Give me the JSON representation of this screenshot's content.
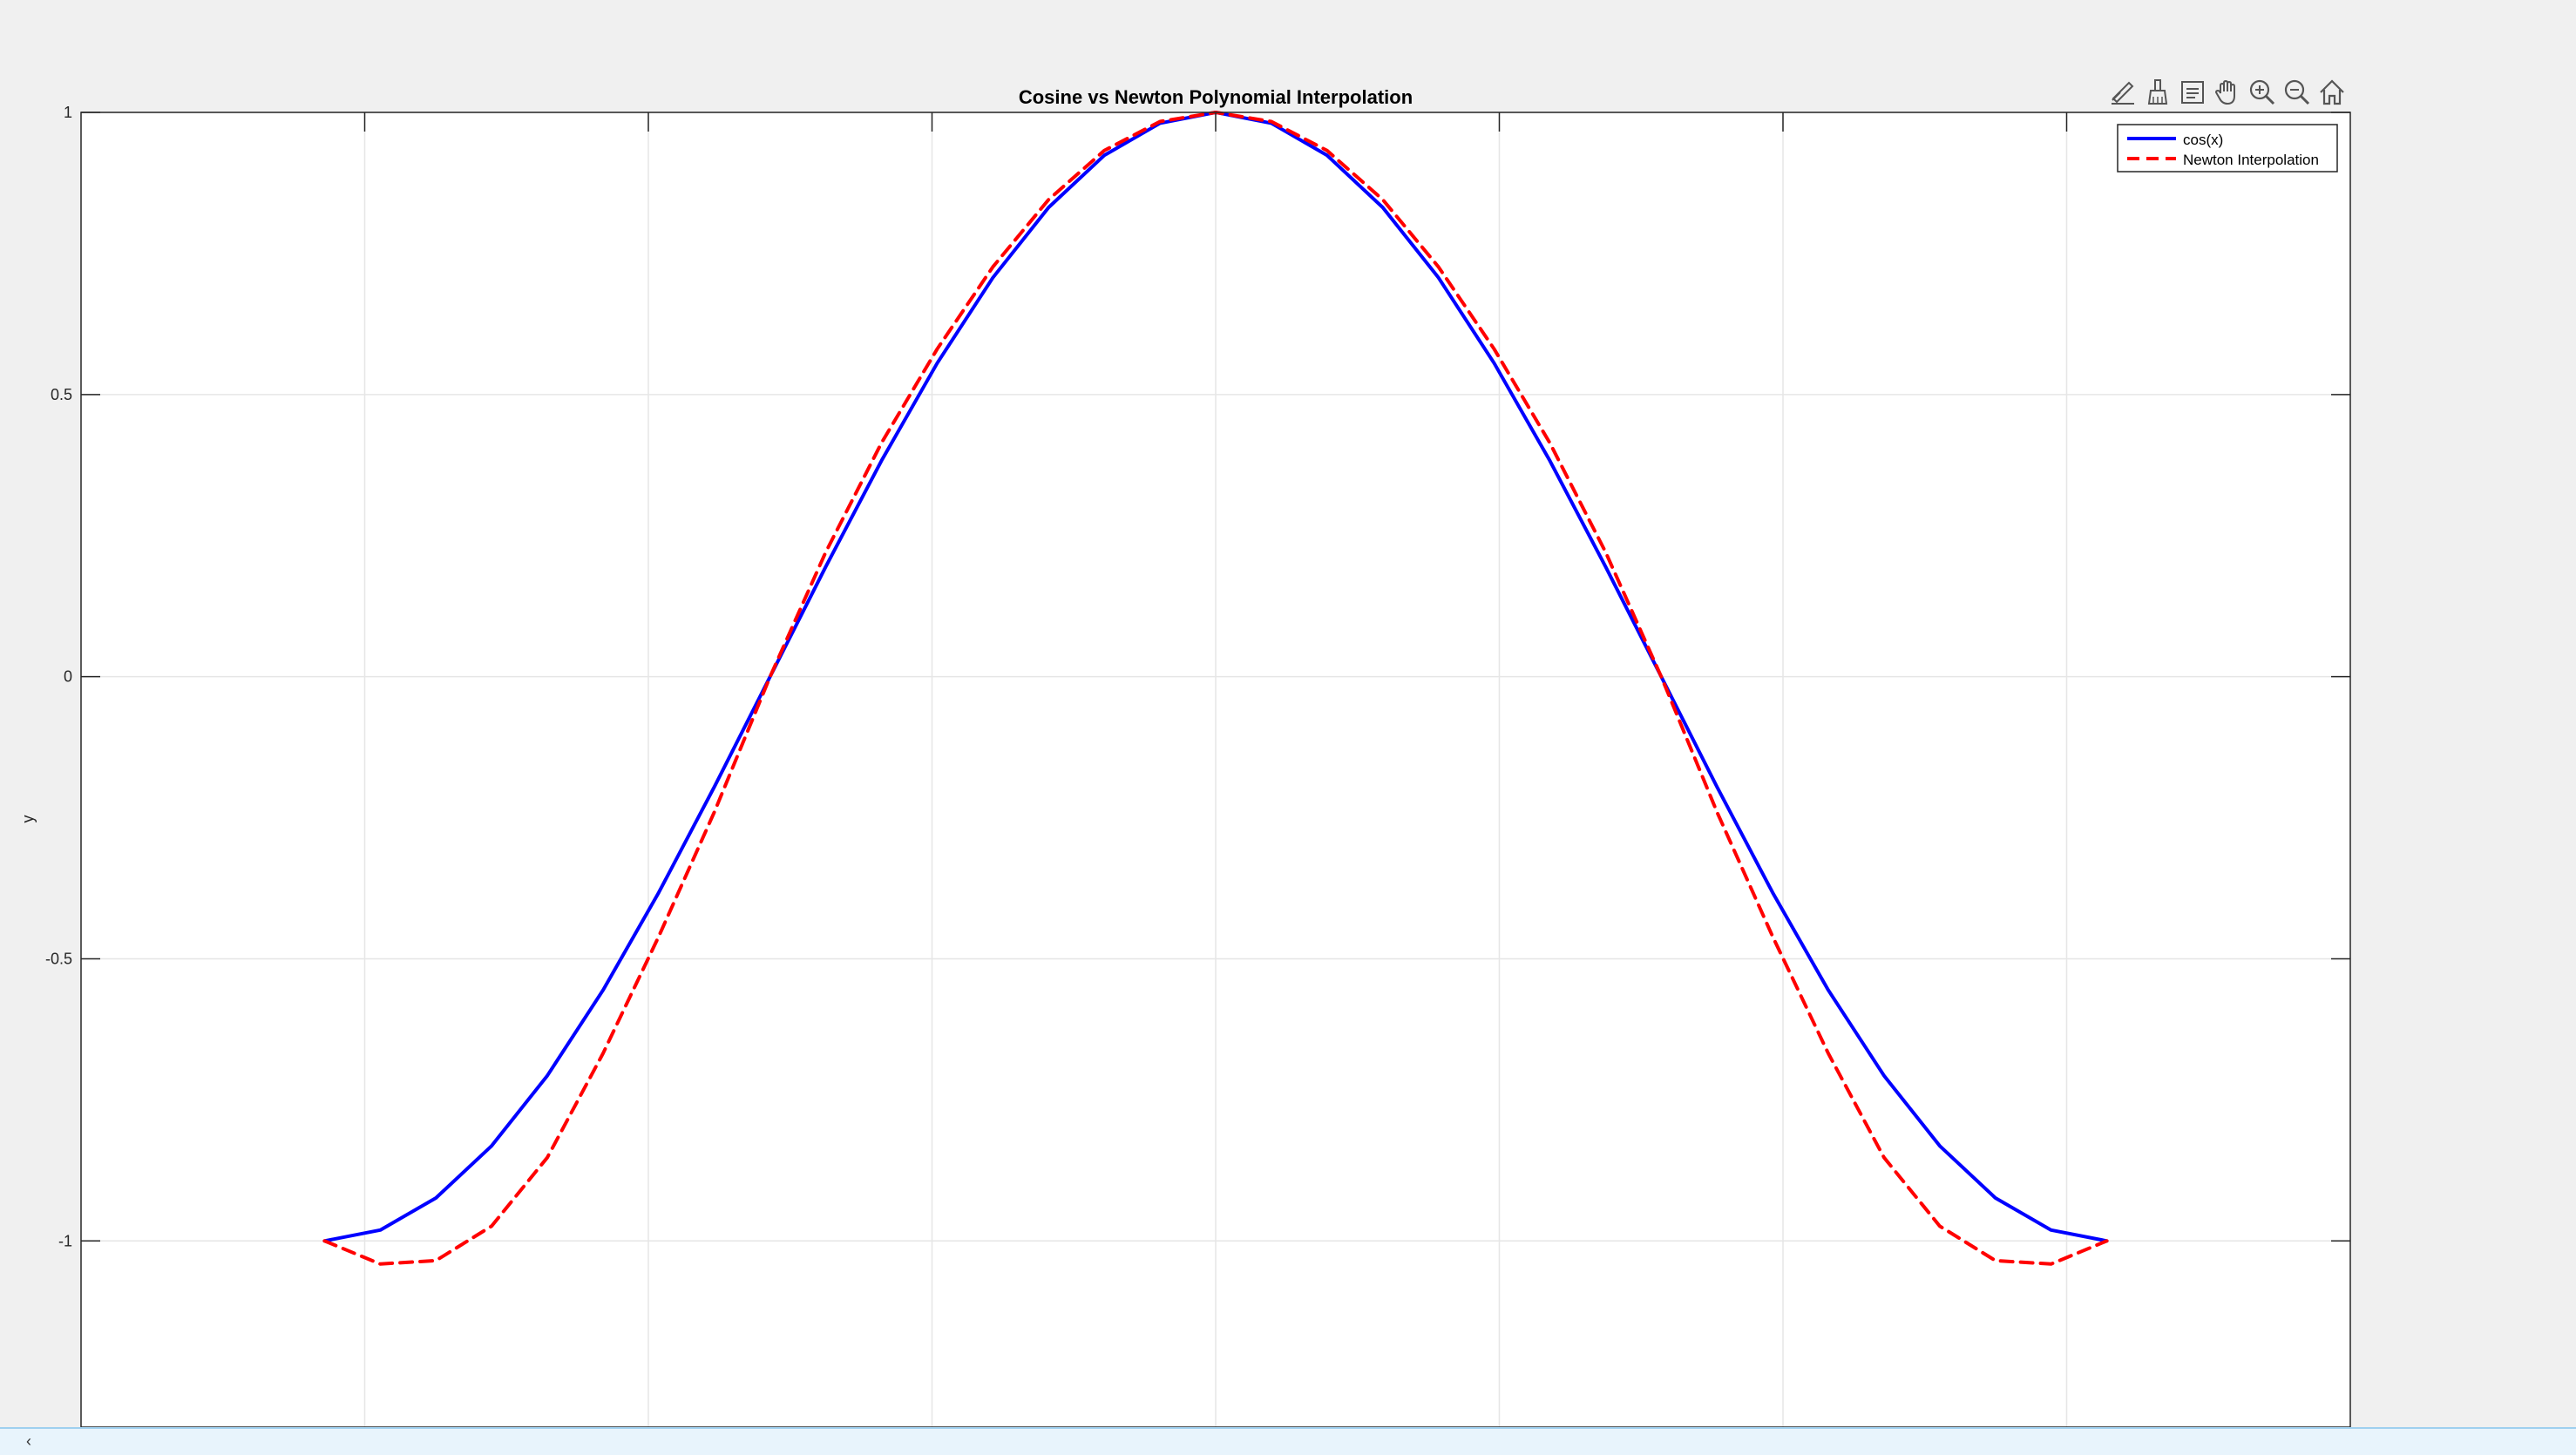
{
  "window": {
    "title": "Cosine vs Newton Polynomial Interpolation"
  },
  "toolbar": {
    "tools": [
      {
        "name": "edit-plot-icon",
        "label": "Edit plot"
      },
      {
        "name": "brush-icon",
        "label": "Brush"
      },
      {
        "name": "data-tips-icon",
        "label": "Data tips"
      },
      {
        "name": "pan-hand-icon",
        "label": "Pan"
      },
      {
        "name": "zoom-in-icon",
        "label": "Zoom in"
      },
      {
        "name": "zoom-out-icon",
        "label": "Zoom out"
      },
      {
        "name": "home-icon",
        "label": "Restore view"
      }
    ]
  },
  "command_window": {
    "prompt": "‹"
  },
  "colors": {
    "cos_line": "#0000ff",
    "newton_line": "#ff0000",
    "grid": "#e6e6e6",
    "axis": "#262626",
    "plot_bg": "#ffffff"
  },
  "chart_data": {
    "type": "line",
    "title": "Cosine vs Newton Polynomial Interpolation",
    "xlabel": "",
    "ylabel": "y",
    "xlim": [
      -4,
      4
    ],
    "ylim": [
      -1.33,
      1
    ],
    "xticks": [
      -3,
      -2,
      -1,
      0,
      1,
      2,
      3
    ],
    "yticks": [
      -1,
      -0.5,
      0,
      0.5,
      1
    ],
    "ytick_labels": [
      "-1",
      "-0.5",
      "0",
      "0.5",
      "1"
    ],
    "grid": true,
    "legend_position": "top-right",
    "x_range": [
      -3.14159,
      3.14159
    ],
    "series": [
      {
        "name": "cos(x)",
        "style": "solid",
        "color": "#0000ff",
        "x": [
          -3.1416,
          -2.9452,
          -2.7489,
          -2.5525,
          -2.3562,
          -2.1598,
          -1.9635,
          -1.7671,
          -1.5708,
          -1.3744,
          -1.1781,
          -0.9817,
          -0.7854,
          -0.589,
          -0.3927,
          -0.1963,
          0,
          0.1963,
          0.3927,
          0.589,
          0.7854,
          0.9817,
          1.1781,
          1.3744,
          1.5708,
          1.7671,
          1.9635,
          2.1598,
          2.3562,
          2.5525,
          2.7489,
          2.9452,
          3.1416
        ],
        "y": [
          -1,
          -0.9808,
          -0.9239,
          -0.8315,
          -0.7071,
          -0.5556,
          -0.3827,
          -0.1951,
          0,
          0.1951,
          0.3827,
          0.5556,
          0.7071,
          0.8315,
          0.9239,
          0.9808,
          1,
          0.9808,
          0.9239,
          0.8315,
          0.7071,
          0.5556,
          0.3827,
          0.1951,
          0,
          -0.1951,
          -0.3827,
          -0.5556,
          -0.7071,
          -0.8315,
          -0.9239,
          -0.9808,
          -1
        ]
      },
      {
        "name": "Newton Interpolation",
        "style": "dashed",
        "color": "#ff0000",
        "x": [
          -3.1416,
          -2.9452,
          -2.7489,
          -2.5525,
          -2.3562,
          -2.1598,
          -1.9635,
          -1.7671,
          -1.5708,
          -1.3744,
          -1.1781,
          -0.9817,
          -0.7854,
          -0.589,
          -0.3927,
          -0.1963,
          0,
          0.1963,
          0.3927,
          0.589,
          0.7854,
          0.9817,
          1.1781,
          1.3744,
          1.5708,
          1.7671,
          1.9635,
          2.1598,
          2.3562,
          2.5525,
          2.7489,
          2.9452,
          3.1416
        ],
        "y": [
          -1,
          -1.0409,
          -1.0349,
          -0.9737,
          -0.8522,
          -0.6677,
          -0.4605,
          -0.2396,
          0,
          0.2209,
          0.4142,
          0.5807,
          0.7262,
          0.8454,
          0.9324,
          0.9838,
          1,
          0.9838,
          0.9324,
          0.8454,
          0.7262,
          0.5807,
          0.4142,
          0.2209,
          0,
          -0.2396,
          -0.4605,
          -0.6677,
          -0.8522,
          -0.9737,
          -1.0349,
          -1.0409,
          -1
        ]
      }
    ]
  }
}
